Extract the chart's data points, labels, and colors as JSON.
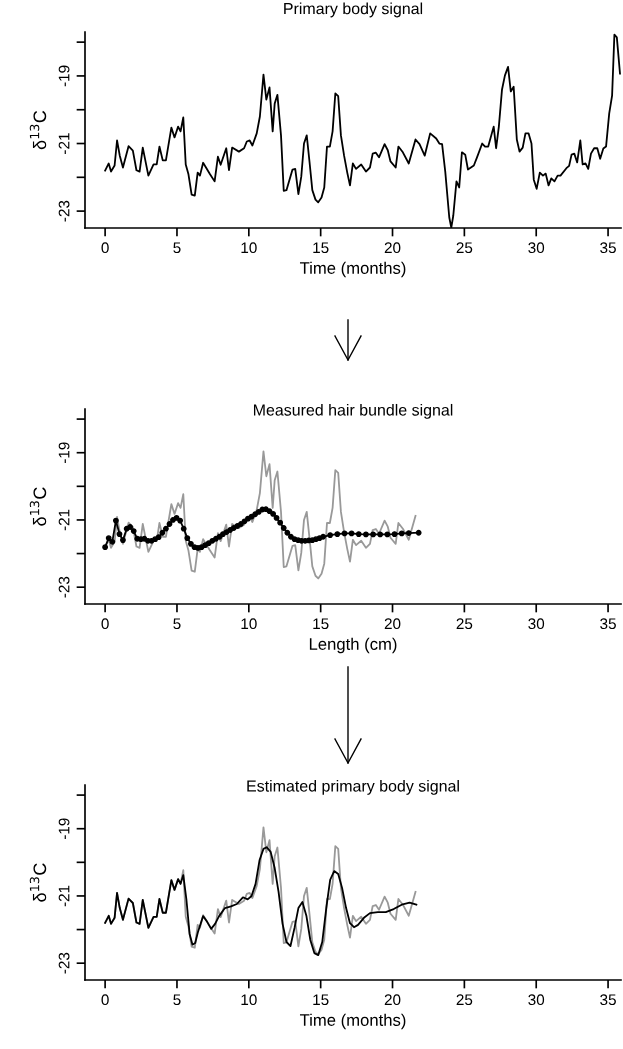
{
  "chart_data": [
    {
      "type": "line",
      "title": "Primary body signal",
      "xlabel": "Time (months)",
      "ylabel": "δ$^{13}$C",
      "xlim": [
        -1.4,
        35.9
      ],
      "ylim": [
        -23.5,
        -17.7
      ],
      "xticks": [
        0,
        5,
        10,
        15,
        20,
        25,
        30,
        35
      ],
      "yticks": [
        {
          "value": -23,
          "label": "-23"
        },
        {
          "value": -22,
          "label": null
        },
        {
          "value": -21,
          "label": "-21"
        },
        {
          "value": -20,
          "label": null
        },
        {
          "value": -19,
          "label": "-19"
        },
        {
          "value": -18,
          "label": null
        }
      ],
      "grid": false,
      "line_style": "solid",
      "series": [
        {
          "color": "#000000",
          "x": [
            0,
            0.25,
            0.41,
            0.66,
            0.83,
            1.02,
            1.24,
            1.63,
            1.93,
            2.18,
            2.4,
            2.62,
            3.01,
            3.37,
            3.59,
            3.78,
            4.01,
            4.23,
            4.61,
            4.83,
            5.08,
            5.25,
            5.44,
            5.61,
            5.8,
            6.02,
            6.24,
            6.44,
            6.6,
            6.82,
            7.29,
            7.62,
            7.85,
            8.04,
            8.43,
            8.62,
            8.84,
            9.31,
            9.67,
            9.86,
            10.06,
            10.25,
            10.55,
            10.77,
            11.02,
            11.22,
            11.44,
            11.66,
            11.8,
            11.99,
            12.24,
            12.43,
            12.62,
            13.04,
            13.23,
            13.45,
            13.65,
            13.84,
            14.03,
            14.23,
            14.42,
            14.64,
            14.83,
            15.06,
            15.25,
            15.44,
            15.64,
            15.83,
            16.02,
            16.22,
            16.41,
            16.63,
            16.85,
            17.04,
            17.24,
            17.46,
            17.82,
            18.15,
            18.43,
            18.62,
            18.84,
            19.06,
            19.45,
            19.67,
            19.86,
            20.22,
            20.41,
            20.72,
            21.13,
            21.6,
            21.88,
            22.24,
            22.62,
            23.04,
            23.26,
            23.45,
            23.67,
            23.95,
            24.09,
            24.23,
            24.45,
            24.64,
            24.83,
            25.06,
            25.25,
            25.66,
            25.88,
            26.24,
            26.44,
            26.66,
            27.04,
            27.21,
            27.4,
            27.62,
            27.82,
            28.04,
            28.23,
            28.43,
            28.65,
            28.84,
            29.06,
            29.25,
            29.47,
            29.67,
            29.83,
            30.03,
            30.25,
            30.47,
            30.66,
            30.86,
            31.05,
            31.27,
            31.49,
            31.69,
            32.1,
            32.29,
            32.46,
            32.65,
            32.85,
            33.07,
            33.23,
            33.43,
            33.62,
            33.81,
            34.03,
            34.25,
            34.45,
            34.67,
            34.86,
            35.08,
            35.28,
            35.44,
            35.61,
            35.83
          ],
          "values": [
            -21.8,
            -21.59,
            -21.83,
            -21.65,
            -20.91,
            -21.36,
            -21.71,
            -21.08,
            -21.21,
            -21.79,
            -21.83,
            -21.12,
            -21.95,
            -21.62,
            -21.62,
            -21.09,
            -21.5,
            -21.5,
            -20.53,
            -20.82,
            -20.5,
            -20.64,
            -20.23,
            -21.62,
            -21.91,
            -22.51,
            -22.54,
            -21.86,
            -21.95,
            -21.57,
            -21.9,
            -22.12,
            -21.39,
            -21.63,
            -21.14,
            -21.79,
            -21.12,
            -21.24,
            -21.14,
            -20.94,
            -20.91,
            -21.06,
            -20.7,
            -20.2,
            -18.96,
            -19.7,
            -19.34,
            -20.64,
            -19.82,
            -19.56,
            -20.76,
            -22.4,
            -22.38,
            -21.77,
            -21.75,
            -22.5,
            -21.98,
            -21.0,
            -20.76,
            -21.57,
            -22.38,
            -22.66,
            -22.74,
            -22.6,
            -22.3,
            -21.09,
            -21.09,
            -20.64,
            -19.52,
            -19.6,
            -20.76,
            -21.36,
            -21.86,
            -22.24,
            -21.59,
            -21.75,
            -21.62,
            -21.83,
            -21.71,
            -21.3,
            -21.27,
            -21.41,
            -21.02,
            -21.2,
            -21.53,
            -21.71,
            -21.09,
            -21.26,
            -21.59,
            -20.88,
            -21.02,
            -21.36,
            -20.7,
            -20.85,
            -21.0,
            -21.02,
            -21.83,
            -23.19,
            -23.49,
            -23.13,
            -22.12,
            -22.3,
            -21.26,
            -21.33,
            -21.77,
            -21.65,
            -21.41,
            -21.0,
            -21.09,
            -21.09,
            -20.5,
            -21.14,
            -20.5,
            -19.4,
            -18.99,
            -18.73,
            -19.46,
            -19.32,
            -20.88,
            -21.24,
            -21.12,
            -20.7,
            -20.7,
            -21.0,
            -22.07,
            -22.34,
            -21.86,
            -21.95,
            -21.89,
            -22.24,
            -22.03,
            -22.12,
            -21.95,
            -21.95,
            -21.73,
            -21.66,
            -21.33,
            -21.3,
            -21.56,
            -20.91,
            -21.62,
            -21.59,
            -21.75,
            -21.3,
            -21.14,
            -21.14,
            -21.45,
            -21.15,
            -21.09,
            -20.11,
            -19.58,
            -17.78,
            -17.86,
            -18.93
          ]
        }
      ]
    },
    {
      "type": "line",
      "title": "Measured hair bundle signal",
      "xlabel": "Length (cm)",
      "ylabel": "δ$^{13}$C",
      "xlim": [
        -1.4,
        35.9
      ],
      "ylim": [
        -23.5,
        -17.7
      ],
      "xticks": [
        0,
        5,
        10,
        15,
        20,
        25,
        30,
        35
      ],
      "yticks": [
        {
          "value": -23,
          "label": "-23"
        },
        {
          "value": -22,
          "label": null
        },
        {
          "value": -21,
          "label": "-21"
        },
        {
          "value": -20,
          "label": null
        },
        {
          "value": -19,
          "label": "-19"
        },
        {
          "value": -18,
          "label": null
        }
      ],
      "grid": false,
      "line_style": "solid",
      "series": [
        {
          "color": "#999999",
          "x": [
            0,
            0.25,
            0.41,
            0.66,
            0.83,
            1.02,
            1.24,
            1.63,
            1.93,
            2.18,
            2.4,
            2.62,
            3.01,
            3.37,
            3.59,
            3.78,
            4.01,
            4.23,
            4.61,
            4.83,
            5.08,
            5.25,
            5.44,
            5.61,
            5.8,
            6.02,
            6.24,
            6.44,
            6.6,
            6.82,
            7.29,
            7.62,
            7.85,
            8.04,
            8.43,
            8.62,
            8.84,
            9.31,
            9.67,
            9.86,
            10.06,
            10.25,
            10.55,
            10.77,
            11.02,
            11.22,
            11.44,
            11.66,
            11.8,
            11.99,
            12.24,
            12.43,
            12.62,
            13.04,
            13.23,
            13.45,
            13.65,
            13.84,
            14.03,
            14.23,
            14.42,
            14.64,
            14.83,
            15.06,
            15.25,
            15.44,
            15.64,
            15.83,
            16.02,
            16.22,
            16.41,
            16.63,
            16.85,
            17.04,
            17.24,
            17.46,
            17.82,
            18.15,
            18.43,
            18.62,
            18.84,
            19.06,
            19.45,
            19.67,
            19.86,
            20.22,
            20.41,
            20.72,
            21.13,
            21.6
          ],
          "values": [
            -21.8,
            -21.59,
            -21.83,
            -21.65,
            -20.91,
            -21.36,
            -21.71,
            -21.08,
            -21.21,
            -21.79,
            -21.83,
            -21.12,
            -21.95,
            -21.62,
            -21.62,
            -21.09,
            -21.5,
            -21.5,
            -20.53,
            -20.82,
            -20.5,
            -20.64,
            -20.23,
            -21.62,
            -21.91,
            -22.51,
            -22.54,
            -21.86,
            -21.95,
            -21.57,
            -21.9,
            -22.12,
            -21.39,
            -21.63,
            -21.14,
            -21.79,
            -21.12,
            -21.24,
            -21.14,
            -20.94,
            -20.91,
            -21.06,
            -20.7,
            -20.2,
            -18.96,
            -19.7,
            -19.34,
            -20.64,
            -19.82,
            -19.56,
            -20.76,
            -22.4,
            -22.38,
            -21.77,
            -21.75,
            -22.5,
            -21.98,
            -21.0,
            -20.76,
            -21.57,
            -22.38,
            -22.66,
            -22.74,
            -22.6,
            -22.3,
            -21.09,
            -21.09,
            -20.64,
            -19.52,
            -19.6,
            -20.76,
            -21.36,
            -21.86,
            -22.24,
            -21.59,
            -21.75,
            -21.62,
            -21.83,
            -21.71,
            -21.3,
            -21.27,
            -21.41,
            -21.02,
            -21.2,
            -21.53,
            -21.71,
            -21.09,
            -21.26,
            -21.59,
            -20.88
          ]
        },
        {
          "color": "#000000",
          "marker": "circle",
          "x": [
            0,
            0.25,
            0.5,
            0.75,
            1.0,
            1.24,
            1.5,
            1.74,
            1.99,
            2.24,
            2.49,
            2.73,
            2.98,
            3.23,
            3.48,
            3.73,
            3.98,
            4.23,
            4.48,
            4.72,
            4.97,
            5.22,
            5.47,
            5.72,
            5.97,
            6.22,
            6.46,
            6.71,
            6.96,
            7.21,
            7.46,
            7.71,
            7.96,
            8.2,
            8.45,
            8.7,
            8.95,
            9.2,
            9.45,
            9.7,
            9.94,
            10.19,
            10.44,
            10.69,
            10.94,
            11.19,
            11.44,
            11.69,
            11.93,
            12.18,
            12.43,
            12.68,
            12.93,
            13.18,
            13.43,
            13.67,
            13.92,
            14.17,
            14.42,
            14.67,
            14.92,
            15.17,
            15.66,
            16.16,
            16.66,
            17.15,
            17.65,
            18.15,
            18.65,
            19.14,
            19.64,
            20.14,
            20.64,
            21.13,
            21.82
          ],
          "values": [
            -21.81,
            -21.54,
            -21.65,
            -21.02,
            -21.42,
            -21.6,
            -21.26,
            -21.21,
            -21.33,
            -21.56,
            -21.57,
            -21.56,
            -21.62,
            -21.62,
            -21.57,
            -21.51,
            -21.38,
            -21.26,
            -21.12,
            -21.0,
            -20.94,
            -21.02,
            -21.26,
            -21.54,
            -21.71,
            -21.81,
            -21.83,
            -21.81,
            -21.75,
            -21.69,
            -21.62,
            -21.56,
            -21.5,
            -21.42,
            -21.36,
            -21.3,
            -21.24,
            -21.18,
            -21.12,
            -21.04,
            -20.96,
            -20.9,
            -20.83,
            -20.76,
            -20.69,
            -20.68,
            -20.74,
            -20.82,
            -20.94,
            -21.08,
            -21.24,
            -21.38,
            -21.5,
            -21.57,
            -21.6,
            -21.62,
            -21.62,
            -21.61,
            -21.6,
            -21.57,
            -21.54,
            -21.5,
            -21.45,
            -21.42,
            -21.4,
            -21.4,
            -21.42,
            -21.43,
            -21.43,
            -21.43,
            -21.43,
            -21.42,
            -21.4,
            -21.39,
            -21.38
          ]
        }
      ]
    },
    {
      "type": "line",
      "title": "Estimated primary body signal",
      "xlabel": "Time (months)",
      "ylabel": "δ$^{13}$C",
      "xlim": [
        -1.4,
        35.9
      ],
      "ylim": [
        -23.5,
        -17.7
      ],
      "xticks": [
        0,
        5,
        10,
        15,
        20,
        25,
        30,
        35
      ],
      "yticks": [
        {
          "value": -23,
          "label": "-23"
        },
        {
          "value": -22,
          "label": null
        },
        {
          "value": -21,
          "label": "-21"
        },
        {
          "value": -20,
          "label": null
        },
        {
          "value": -19,
          "label": "-19"
        },
        {
          "value": -18,
          "label": null
        }
      ],
      "grid": false,
      "line_style": "solid",
      "series": [
        {
          "color": "#999999",
          "x": [
            0,
            0.25,
            0.41,
            0.66,
            0.83,
            1.02,
            1.24,
            1.63,
            1.93,
            2.18,
            2.4,
            2.62,
            3.01,
            3.37,
            3.59,
            3.78,
            4.01,
            4.23,
            4.61,
            4.83,
            5.08,
            5.25,
            5.44,
            5.61,
            5.8,
            6.02,
            6.24,
            6.44,
            6.6,
            6.82,
            7.29,
            7.62,
            7.85,
            8.04,
            8.43,
            8.62,
            8.84,
            9.31,
            9.67,
            9.86,
            10.06,
            10.25,
            10.55,
            10.77,
            11.02,
            11.22,
            11.44,
            11.66,
            11.8,
            11.99,
            12.24,
            12.43,
            12.62,
            13.04,
            13.23,
            13.45,
            13.65,
            13.84,
            14.03,
            14.23,
            14.42,
            14.64,
            14.83,
            15.06,
            15.25,
            15.44,
            15.64,
            15.83,
            16.02,
            16.22,
            16.41,
            16.63,
            16.85,
            17.04,
            17.24,
            17.46,
            17.82,
            18.15,
            18.43,
            18.62,
            18.84,
            19.06,
            19.45,
            19.67,
            19.86,
            20.22,
            20.41,
            20.72,
            21.13,
            21.6
          ],
          "values": [
            -21.8,
            -21.59,
            -21.83,
            -21.65,
            -20.91,
            -21.36,
            -21.71,
            -21.08,
            -21.21,
            -21.79,
            -21.83,
            -21.12,
            -21.95,
            -21.62,
            -21.62,
            -21.09,
            -21.5,
            -21.5,
            -20.53,
            -20.82,
            -20.5,
            -20.64,
            -20.23,
            -21.62,
            -21.91,
            -22.51,
            -22.54,
            -21.86,
            -21.95,
            -21.57,
            -21.9,
            -22.12,
            -21.39,
            -21.63,
            -21.14,
            -21.79,
            -21.12,
            -21.24,
            -21.14,
            -20.94,
            -20.91,
            -21.06,
            -20.7,
            -20.2,
            -18.96,
            -19.7,
            -19.34,
            -20.64,
            -19.82,
            -19.56,
            -20.76,
            -22.4,
            -22.38,
            -21.77,
            -21.75,
            -22.5,
            -21.98,
            -21.0,
            -20.76,
            -21.57,
            -22.38,
            -22.66,
            -22.74,
            -22.6,
            -22.3,
            -21.09,
            -21.09,
            -20.64,
            -19.52,
            -19.6,
            -20.76,
            -21.36,
            -21.86,
            -22.24,
            -21.59,
            -21.75,
            -21.62,
            -21.83,
            -21.71,
            -21.3,
            -21.27,
            -21.41,
            -21.02,
            -21.2,
            -21.53,
            -21.71,
            -21.09,
            -21.26,
            -21.59,
            -20.88
          ]
        },
        {
          "color": "#000000",
          "x": [
            0,
            0.25,
            0.41,
            0.66,
            0.83,
            1.02,
            1.24,
            1.63,
            1.93,
            2.18,
            2.4,
            2.62,
            3.01,
            3.37,
            3.59,
            3.78,
            4.01,
            4.23,
            4.61,
            4.83,
            5.08,
            5.25,
            5.44,
            5.66,
            5.88,
            6.08,
            6.27,
            6.46,
            6.82,
            7.1,
            7.38,
            7.65,
            7.93,
            8.34,
            8.76,
            9.17,
            9.59,
            9.92,
            10.19,
            10.47,
            10.75,
            11.02,
            11.24,
            11.52,
            11.8,
            12.07,
            12.35,
            12.62,
            12.9,
            13.18,
            13.45,
            13.73,
            14.01,
            14.28,
            14.56,
            14.83,
            15.11,
            15.39,
            15.66,
            15.94,
            16.22,
            16.49,
            16.77,
            17.04,
            17.32,
            17.6,
            18.01,
            18.43,
            18.98,
            19.53,
            20.08,
            20.64,
            21.19,
            21.66
          ],
          "values": [
            -21.8,
            -21.59,
            -21.83,
            -21.65,
            -20.91,
            -21.36,
            -21.71,
            -21.08,
            -21.21,
            -21.79,
            -21.83,
            -21.12,
            -21.95,
            -21.62,
            -21.62,
            -21.09,
            -21.5,
            -21.5,
            -20.53,
            -20.82,
            -20.5,
            -20.64,
            -20.38,
            -21.12,
            -22.13,
            -22.45,
            -22.4,
            -22.07,
            -21.6,
            -21.77,
            -21.98,
            -21.83,
            -21.6,
            -21.36,
            -21.31,
            -21.24,
            -21.04,
            -21.1,
            -21.0,
            -20.64,
            -19.93,
            -19.6,
            -19.55,
            -19.69,
            -20.17,
            -20.88,
            -21.83,
            -22.37,
            -22.49,
            -21.95,
            -21.36,
            -21.18,
            -21.6,
            -22.31,
            -22.7,
            -22.76,
            -22.37,
            -21.36,
            -20.52,
            -20.26,
            -20.35,
            -20.76,
            -21.36,
            -21.81,
            -21.93,
            -21.86,
            -21.65,
            -21.51,
            -21.48,
            -21.48,
            -21.39,
            -21.26,
            -21.2,
            -21.26
          ]
        }
      ]
    }
  ]
}
